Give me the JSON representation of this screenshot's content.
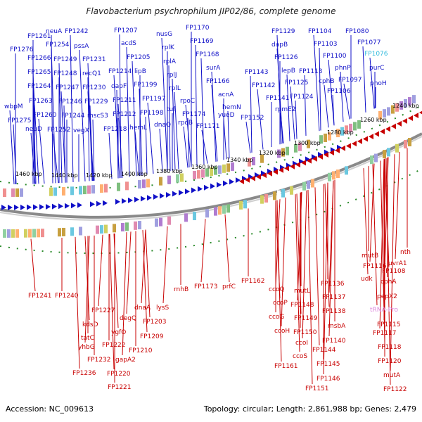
{
  "title": "Flavobacterium psychrophilum JIP02/86, complete genome",
  "footer": {
    "accession": "Accession: NC_009613",
    "summary": "Topology: circular; Length: 2,861,988 bp; Genes: 2,479"
  },
  "colors": {
    "forward": "#1010c8",
    "reverse": "#c80000",
    "highlight": "#33bbdd",
    "pseudo": "#dd88dd",
    "ring": "#8a8a8a",
    "tick": "#2a8a2a"
  },
  "scale_ticks": [
    "1460 kbp",
    "1440 kbp",
    "1420 kbp",
    "1400 kbp",
    "1380 kbp",
    "1360 kbp",
    "1340 kbp",
    "1320 kbp",
    "1300 kbp",
    "1280 kbp",
    "1260 kbp",
    "1240 kbp"
  ],
  "forward_labels": [
    "FP1261",
    "neuA",
    "FP1242",
    "FP1254",
    "pssA",
    "FP1276",
    "FP1266",
    "FP1249",
    "FP1231",
    "FP1265",
    "FP1248",
    "recQ1",
    "FP1264",
    "FP1247",
    "FP1230",
    "FP1263",
    "FP1246",
    "FP1229",
    "wbpM",
    "FP1260",
    "FP1244",
    "mscS3",
    "FP1275",
    "neuD",
    "FP1252",
    "vegX",
    "FP1207",
    "acdS",
    "FP1205",
    "FP1214",
    "lipB",
    "dapF",
    "FP1199",
    "FP1211",
    "FP1197",
    "FP1212",
    "FP1198",
    "FP1218",
    "hemL",
    "nusG",
    "rplK",
    "rplA",
    "rplJ",
    "rplL",
    "rpoC",
    "tuf",
    "FP1174",
    "dnaQ",
    "rpoB",
    "FP1171",
    "FP1170",
    "FP1169",
    "FP1168",
    "surA",
    "FP1166",
    "acnA",
    "hemN",
    "yueD",
    "FP1129",
    "dapB",
    "FP1126",
    "FP1143",
    "lepB",
    "FP1125",
    "FP1142",
    "FP1141",
    "FP1124",
    "rpmE2",
    "FP1152",
    "FP1104",
    "FP1080",
    "FP1103",
    "FP1077",
    "FP1076",
    "FP1100",
    "purC",
    "FP1113",
    "phnP",
    "cphB",
    "FP1097",
    "phoH",
    "FP1106"
  ],
  "reverse_labels": [
    "FP1241",
    "FP1240",
    "FP1227",
    "kdsD",
    "tatC",
    "yhbG",
    "FP1236",
    "FP1232",
    "degQ",
    "ygfO",
    "FP1222",
    "gapA2",
    "FP1220",
    "FP1221",
    "dnaA",
    "FP1209",
    "FP1210",
    "lysS",
    "FP1203",
    "rnhB",
    "FP1173",
    "prfC",
    "FP1162",
    "ccoQ",
    "ccoP",
    "ccoG",
    "ccoH",
    "FP1161",
    "mutL",
    "FP1148",
    "FP1149",
    "FP1150",
    "ccoI",
    "ccoS",
    "FP1136",
    "FP1137",
    "FP1138",
    "msbA",
    "FP1140",
    "FP1144",
    "FP1145",
    "FP1146",
    "FP1151",
    "mutB",
    "FP1116",
    "FP1108",
    "nth",
    "uvrA1",
    "udk",
    "cphA",
    "pepX2",
    "tRNA-Pro",
    "FP1115",
    "FP1117",
    "FP1118",
    "FP1120",
    "mutA",
    "FP1122"
  ]
}
